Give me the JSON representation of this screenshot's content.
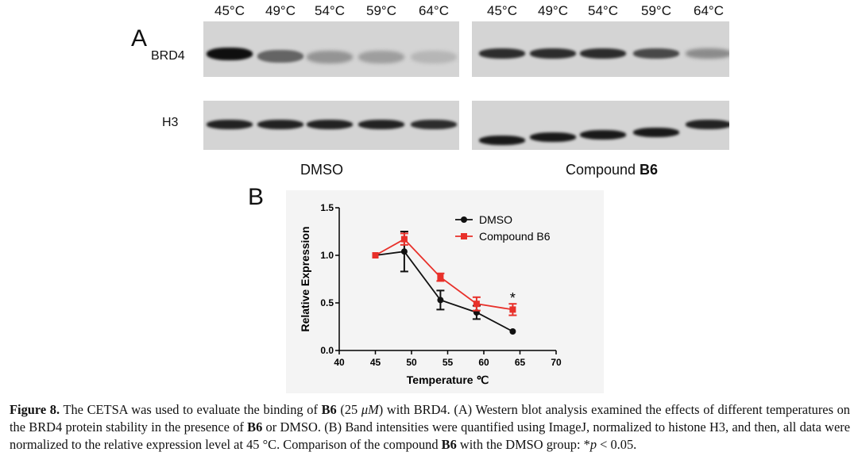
{
  "panel_a": {
    "label": "A",
    "temperatures_dmso": [
      "45°C",
      "49°C",
      "54°C",
      "59°C",
      "64°C"
    ],
    "temperatures_b6": [
      "45°C",
      "49°C",
      "54°C",
      "59°C",
      "64°C"
    ],
    "row_labels": [
      "BRD4",
      "H3"
    ],
    "group_dmso": "DMSO",
    "group_b6_prefix": "Compound ",
    "group_b6_bold": "B6",
    "brd4_band_intensity_dmso": [
      1.0,
      0.55,
      0.3,
      0.25,
      0.12
    ],
    "brd4_band_intensity_b6": [
      0.85,
      0.85,
      0.85,
      0.7,
      0.35
    ],
    "h3_band_intensity_dmso": [
      0.9,
      0.9,
      0.9,
      0.9,
      0.85
    ],
    "h3_band_intensity_b6": [
      0.95,
      0.95,
      0.95,
      0.95,
      0.9
    ]
  },
  "panel_b": {
    "label": "B"
  },
  "chart_data": {
    "type": "line",
    "xlabel": "Temperature ℃",
    "ylabel": "Relative Expression",
    "xlim": [
      40,
      70
    ],
    "ylim": [
      0.0,
      1.5
    ],
    "xticks": [
      "40",
      "45",
      "50",
      "55",
      "60",
      "65",
      "70"
    ],
    "yticks": [
      "0.0",
      "0.5",
      "1.0",
      "1.5"
    ],
    "x": [
      45,
      49,
      54,
      59,
      64
    ],
    "series": [
      {
        "name": "DMSO",
        "color": "#111111",
        "marker": "circle",
        "values": [
          1.0,
          1.04,
          0.53,
          0.4,
          0.2
        ],
        "errors": [
          0.0,
          0.21,
          0.1,
          0.07,
          0.0
        ]
      },
      {
        "name": "Compound B6",
        "color": "#e8302a",
        "marker": "square",
        "values": [
          1.0,
          1.17,
          0.77,
          0.49,
          0.43
        ],
        "errors": [
          0.0,
          0.06,
          0.04,
          0.07,
          0.06
        ]
      }
    ],
    "annotations": [
      {
        "x": 64,
        "y": 0.55,
        "text": "*"
      }
    ],
    "legend_position": "top-right",
    "grid": false
  },
  "caption": {
    "label": "Figure 8.",
    "text_1": " The CETSA was used to evaluate the binding of ",
    "b6_1": "B6",
    "text_2": " (25 ",
    "mu": "μM",
    "text_3": ") with BRD4. (A) Western blot analysis examined the effects of different temperatures on the BRD4 protein stability in the presence of ",
    "b6_2": "B6",
    "text_4": " or DMSO. (B) Band intensities were quantified using ImageJ, normalized to histone H3, and then, all data were normalized to the relative expression level at 45 °C. Comparison of the compound ",
    "b6_3": "B6",
    "text_5": " with the DMSO group: *",
    "p": "p",
    "text_6": " < 0.05."
  }
}
